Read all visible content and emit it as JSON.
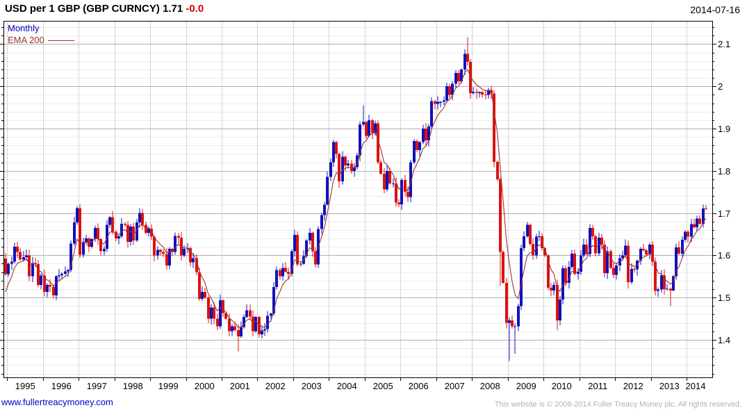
{
  "header": {
    "title": "USD per 1 GBP (GBP CURNCY) 1.71",
    "change": "-0.0",
    "date": "2014-07-16"
  },
  "legend": {
    "series1": "Monthly",
    "series2": "EMA 200"
  },
  "footer": {
    "website": "www.fullertreacymoney.com",
    "copyright": "This website is © 2008-2014 Fuller Treacy Money plc. All rights reserved."
  },
  "colors": {
    "up_candle": "#1111bb",
    "down_candle": "#dd1111",
    "ema_line": "#993333",
    "change_text": "#dd0000",
    "legend_monthly": "#0000bb",
    "link_blue": "#0000cc",
    "copyright_gray": "#b2b2b2",
    "grid_major": "#b0b0b0",
    "grid_minor": "#ececec",
    "grid_vertical": "#d4d4d4",
    "axis_border": "#000000",
    "axis_text": "#000000"
  },
  "chart_data": {
    "type": "candlestick",
    "title": "USD per 1 GBP (GBP CURNCY)",
    "frequency": "Monthly",
    "last_price": 1.71,
    "change_on_day": "-0.0",
    "legend_position": "top-left",
    "grid": true,
    "ylim": [
      1.311,
      2.155
    ],
    "y_major_ticks": [
      1.4,
      1.5,
      1.6,
      1.7,
      1.8,
      1.9,
      2.0,
      2.1
    ],
    "y_minor_step": 0.02,
    "x_tick_years": [
      1995,
      1996,
      1997,
      1998,
      1999,
      2000,
      2001,
      2002,
      2003,
      2004,
      2005,
      2006,
      2007,
      2008,
      2009,
      2010,
      2011,
      2012,
      2013,
      2014
    ],
    "start_month": "1994-12",
    "first_open": 1.592,
    "closes": [
      1.555,
      1.58,
      1.585,
      1.62,
      1.608,
      1.59,
      1.596,
      1.6,
      1.55,
      1.582,
      1.579,
      1.53,
      1.552,
      1.513,
      1.53,
      1.526,
      1.505,
      1.55,
      1.553,
      1.556,
      1.562,
      1.565,
      1.628,
      1.678,
      1.712,
      1.601,
      1.632,
      1.64,
      1.62,
      1.638,
      1.665,
      1.638,
      1.61,
      1.615,
      1.672,
      1.69,
      1.656,
      1.64,
      1.645,
      1.675,
      1.672,
      1.632,
      1.668,
      1.635,
      1.678,
      1.7,
      1.672,
      1.653,
      1.663,
      1.644,
      1.6,
      1.613,
      1.608,
      1.603,
      1.576,
      1.615,
      1.608,
      1.646,
      1.642,
      1.6,
      1.615,
      1.617,
      1.583,
      1.593,
      1.56,
      1.497,
      1.513,
      1.5,
      1.45,
      1.476,
      1.45,
      1.432,
      1.494,
      1.463,
      1.45,
      1.42,
      1.432,
      1.423,
      1.408,
      1.43,
      1.454,
      1.47,
      1.455,
      1.42,
      1.454,
      1.413,
      1.422,
      1.425,
      1.457,
      1.462,
      1.525,
      1.565,
      1.55,
      1.57,
      1.561,
      1.556,
      1.61,
      1.648,
      1.578,
      1.58,
      1.598,
      1.635,
      1.653,
      1.61,
      1.578,
      1.662,
      1.695,
      1.72,
      1.786,
      1.82,
      1.868,
      1.84,
      1.775,
      1.833,
      1.813,
      1.817,
      1.8,
      1.809,
      1.837,
      1.91,
      1.916,
      1.883,
      1.92,
      1.889,
      1.912,
      1.82,
      1.793,
      1.756,
      1.8,
      1.77,
      1.77,
      1.725,
      1.721,
      1.778,
      1.75,
      1.738,
      1.82,
      1.87,
      1.849,
      1.868,
      1.9,
      1.872,
      1.905,
      1.965,
      1.958,
      1.963,
      1.963,
      1.967,
      2.0,
      1.98,
      2.006,
      2.032,
      2.012,
      2.04,
      2.077,
      2.058,
      1.984,
      1.987,
      1.985,
      1.986,
      1.981,
      1.98,
      1.991,
      1.983,
      1.821,
      1.78,
      1.608,
      1.535,
      1.44,
      1.446,
      1.432,
      1.432,
      1.48,
      1.617,
      1.645,
      1.672,
      1.627,
      1.6,
      1.644,
      1.645,
      1.617,
      1.6,
      1.523,
      1.517,
      1.53,
      1.446,
      1.495,
      1.569,
      1.535,
      1.573,
      1.604,
      1.556,
      1.561,
      1.6,
      1.625,
      1.603,
      1.665,
      1.645,
      1.605,
      1.642,
      1.625,
      1.558,
      1.61,
      1.57,
      1.554,
      1.576,
      1.593,
      1.6,
      1.623,
      1.536,
      1.568,
      1.567,
      1.587,
      1.615,
      1.612,
      1.602,
      1.625,
      1.585,
      1.516,
      1.519,
      1.553,
      1.52,
      1.521,
      1.517,
      1.55,
      1.619,
      1.604,
      1.637,
      1.656,
      1.644,
      1.674,
      1.666,
      1.687,
      1.675,
      1.711,
      1.7105
    ],
    "extremes": {
      "2001-06": {
        "low": 1.373
      },
      "2004-12": {
        "high": 1.955
      },
      "2007-11": {
        "high": 2.116
      },
      "2008-10": {
        "low": 1.527
      },
      "2009-01": {
        "low": 1.35
      },
      "2009-03": {
        "low": 1.367
      },
      "2010-05": {
        "low": 1.423
      },
      "2013-07": {
        "low": 1.48
      },
      "2014-07": {
        "high": 1.7192
      }
    },
    "overlay": {
      "name": "EMA 200",
      "type": "ema",
      "alpha": 0.3,
      "seed": 1.495
    }
  }
}
